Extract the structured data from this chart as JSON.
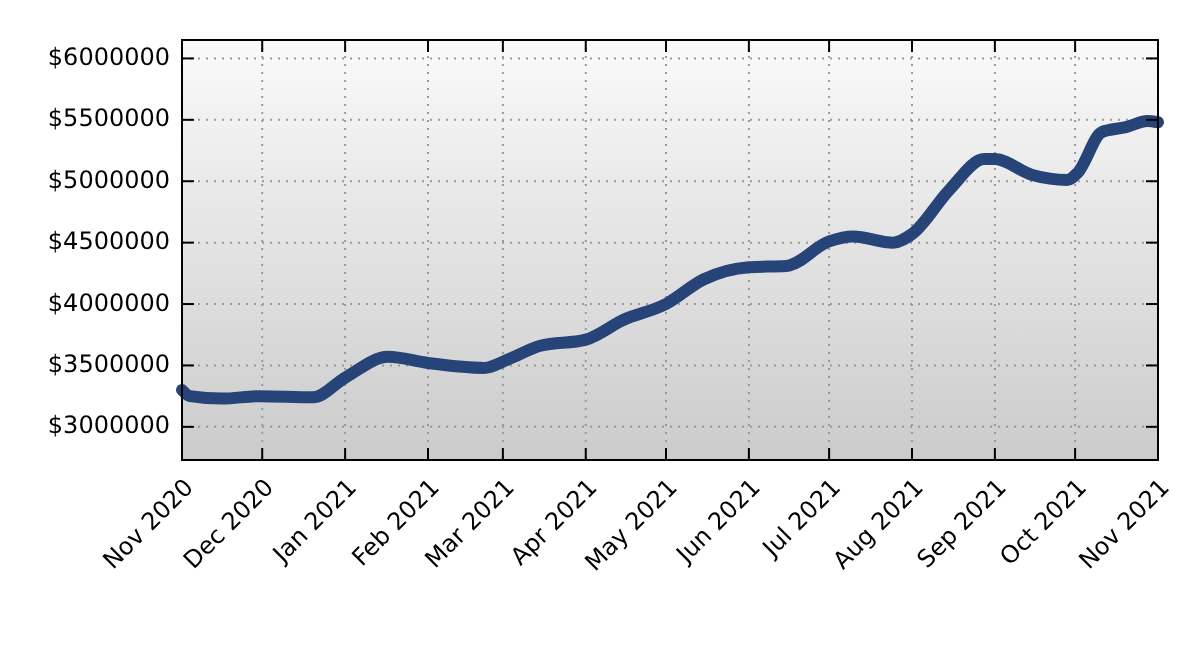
{
  "chart_data": {
    "type": "line",
    "x": [
      "2020-11-01",
      "2020-11-04",
      "2020-11-16",
      "2020-11-30",
      "2020-12-20",
      "2021-01-01",
      "2021-01-17",
      "2021-02-01",
      "2021-02-22",
      "2021-03-03",
      "2021-03-15",
      "2021-04-01",
      "2021-04-15",
      "2021-05-01",
      "2021-05-15",
      "2021-06-01",
      "2021-06-15",
      "2021-07-01",
      "2021-07-10",
      "2021-07-25",
      "2021-08-01",
      "2021-08-15",
      "2021-08-28",
      "2021-09-01",
      "2021-09-15",
      "2021-09-28",
      "2021-10-02",
      "2021-10-11",
      "2021-10-20",
      "2021-10-28",
      "2021-11-01"
    ],
    "series": [
      {
        "color": "#264478",
        "values": [
          3300000,
          3250000,
          3230000,
          3250000,
          3240000,
          3400000,
          3570000,
          3520000,
          3480000,
          3550000,
          3660000,
          3710000,
          3870000,
          4000000,
          4200000,
          4300000,
          4310000,
          4510000,
          4550000,
          4500000,
          4570000,
          4930000,
          5180000,
          5180000,
          5050000,
          5010000,
          5070000,
          5400000,
          5440000,
          5490000,
          5480000
        ]
      }
    ],
    "xlim": [
      "2020-11-01",
      "2021-11-01"
    ],
    "xticks": [
      {
        "value": "2020-11-01",
        "label": "Nov 2020"
      },
      {
        "value": "2020-12-01",
        "label": "Dec 2020"
      },
      {
        "value": "2021-01-01",
        "label": "Jan 2021"
      },
      {
        "value": "2021-02-01",
        "label": "Feb 2021"
      },
      {
        "value": "2021-03-01",
        "label": "Mar 2021"
      },
      {
        "value": "2021-04-01",
        "label": "Apr 2021"
      },
      {
        "value": "2021-05-01",
        "label": "May 2021"
      },
      {
        "value": "2021-06-01",
        "label": "Jun 2021"
      },
      {
        "value": "2021-07-01",
        "label": "Jul 2021"
      },
      {
        "value": "2021-08-01",
        "label": "Aug 2021"
      },
      {
        "value": "2021-09-01",
        "label": "Sep 2021"
      },
      {
        "value": "2021-10-01",
        "label": "Oct 2021"
      },
      {
        "value": "2021-11-01",
        "label": "Nov 2021"
      }
    ],
    "ylim": [
      2730000,
      6150000
    ],
    "yticks": [
      {
        "value": 3000000,
        "label": "$3000000"
      },
      {
        "value": 3500000,
        "label": "$3500000"
      },
      {
        "value": 4000000,
        "label": "$4000000"
      },
      {
        "value": 4500000,
        "label": "$4500000"
      },
      {
        "value": 5000000,
        "label": "$5000000"
      },
      {
        "value": 5500000,
        "label": "$5500000"
      },
      {
        "value": 6000000,
        "label": "$6000000"
      }
    ],
    "grid": true,
    "marker": "none",
    "line_style": "solid"
  }
}
